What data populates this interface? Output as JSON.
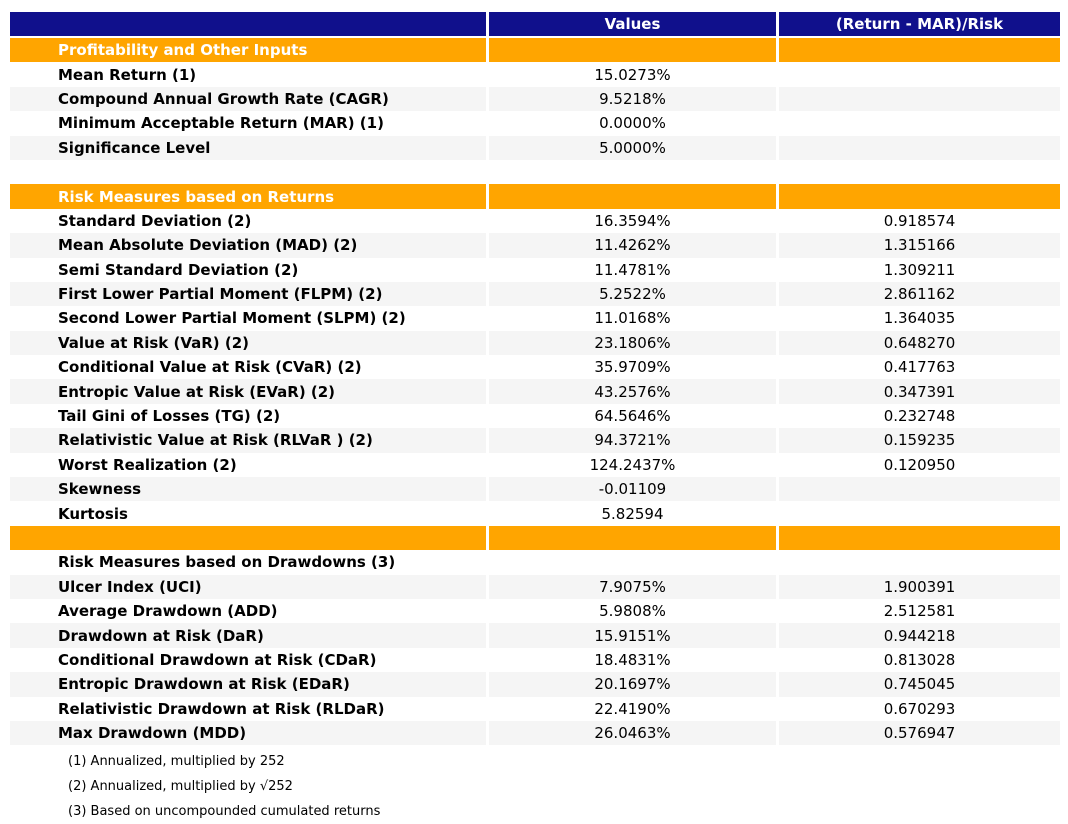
{
  "chart_data": {
    "type": "table",
    "columns": [
      "",
      "Values",
      "(Return - MAR)/Risk"
    ],
    "rows": [
      {
        "kind": "header",
        "cells": [
          "",
          "Values",
          "(Return - MAR)/Risk"
        ]
      },
      {
        "kind": "section",
        "cells": [
          "Profitability and Other Inputs",
          "",
          ""
        ]
      },
      {
        "kind": "data",
        "cells": [
          "Mean Return (1)",
          "15.0273%",
          ""
        ]
      },
      {
        "kind": "data",
        "cells": [
          "Compound Annual Growth Rate (CAGR)",
          "9.5218%",
          ""
        ]
      },
      {
        "kind": "data",
        "cells": [
          "Minimum Acceptable Return (MAR) (1)",
          "0.0000%",
          ""
        ]
      },
      {
        "kind": "data",
        "cells": [
          "Significance Level",
          "5.0000%",
          ""
        ]
      },
      {
        "kind": "blank",
        "cells": [
          "",
          "",
          ""
        ]
      },
      {
        "kind": "section",
        "cells": [
          "Risk Measures based on Returns",
          "",
          ""
        ]
      },
      {
        "kind": "data",
        "cells": [
          "Standard Deviation (2)",
          "16.3594%",
          "0.918574"
        ]
      },
      {
        "kind": "data",
        "cells": [
          "Mean Absolute Deviation (MAD) (2)",
          "11.4262%",
          "1.315166"
        ]
      },
      {
        "kind": "data",
        "cells": [
          "Semi Standard Deviation (2)",
          "11.4781%",
          "1.309211"
        ]
      },
      {
        "kind": "data",
        "cells": [
          "First Lower Partial Moment (FLPM) (2)",
          "5.2522%",
          "2.861162"
        ]
      },
      {
        "kind": "data",
        "cells": [
          "Second Lower Partial Moment (SLPM) (2)",
          "11.0168%",
          "1.364035"
        ]
      },
      {
        "kind": "data",
        "cells": [
          "Value at Risk (VaR) (2)",
          "23.1806%",
          "0.648270"
        ]
      },
      {
        "kind": "data",
        "cells": [
          "Conditional Value at Risk (CVaR) (2)",
          "35.9709%",
          "0.417763"
        ]
      },
      {
        "kind": "data",
        "cells": [
          "Entropic Value at Risk (EVaR) (2)",
          "43.2576%",
          "0.347391"
        ]
      },
      {
        "kind": "data",
        "cells": [
          "Tail Gini of Losses (TG) (2)",
          "64.5646%",
          "0.232748"
        ]
      },
      {
        "kind": "data",
        "cells": [
          "Relativistic Value at Risk (RLVaR ) (2)",
          "94.3721%",
          "0.159235"
        ]
      },
      {
        "kind": "data",
        "cells": [
          "Worst Realization (2)",
          "124.2437%",
          "0.120950"
        ]
      },
      {
        "kind": "data",
        "cells": [
          "Skewness",
          "-0.01109",
          ""
        ]
      },
      {
        "kind": "data",
        "cells": [
          "Kurtosis",
          "5.82594",
          ""
        ]
      },
      {
        "kind": "section",
        "cells": [
          "",
          "",
          ""
        ]
      },
      {
        "kind": "label",
        "cells": [
          "Risk Measures based on Drawdowns (3)",
          "",
          ""
        ]
      },
      {
        "kind": "data",
        "cells": [
          "Ulcer Index (UCI)",
          "7.9075%",
          "1.900391"
        ]
      },
      {
        "kind": "data",
        "cells": [
          "Average Drawdown (ADD)",
          "5.9808%",
          "2.512581"
        ]
      },
      {
        "kind": "data",
        "cells": [
          "Drawdown at Risk (DaR)",
          "15.9151%",
          "0.944218"
        ]
      },
      {
        "kind": "data",
        "cells": [
          "Conditional Drawdown at Risk (CDaR)",
          "18.4831%",
          "0.813028"
        ]
      },
      {
        "kind": "data",
        "cells": [
          "Entropic Drawdown at Risk (EDaR)",
          "20.1697%",
          "0.745045"
        ]
      },
      {
        "kind": "data",
        "cells": [
          "Relativistic Drawdown at Risk (RLDaR)",
          "22.4190%",
          "0.670293"
        ]
      },
      {
        "kind": "data",
        "cells": [
          "Max Drawdown (MDD)",
          "26.0463%",
          "0.576947"
        ]
      }
    ],
    "footnotes": [
      "(1) Annualized, multiplied by 252",
      "(2) Annualized, multiplied by √252",
      "(3) Based on uncompounded cumulated returns"
    ],
    "grid": false,
    "legend": false
  },
  "colors": {
    "header_bg": "#10108C",
    "header_text": "#FFFFFF",
    "section_bg": "#FFA500",
    "section_text": "#FFFFFF",
    "row_stripe": "#F5F5F5",
    "body_text": "#000000",
    "page_bg": "#FFFFFF"
  }
}
